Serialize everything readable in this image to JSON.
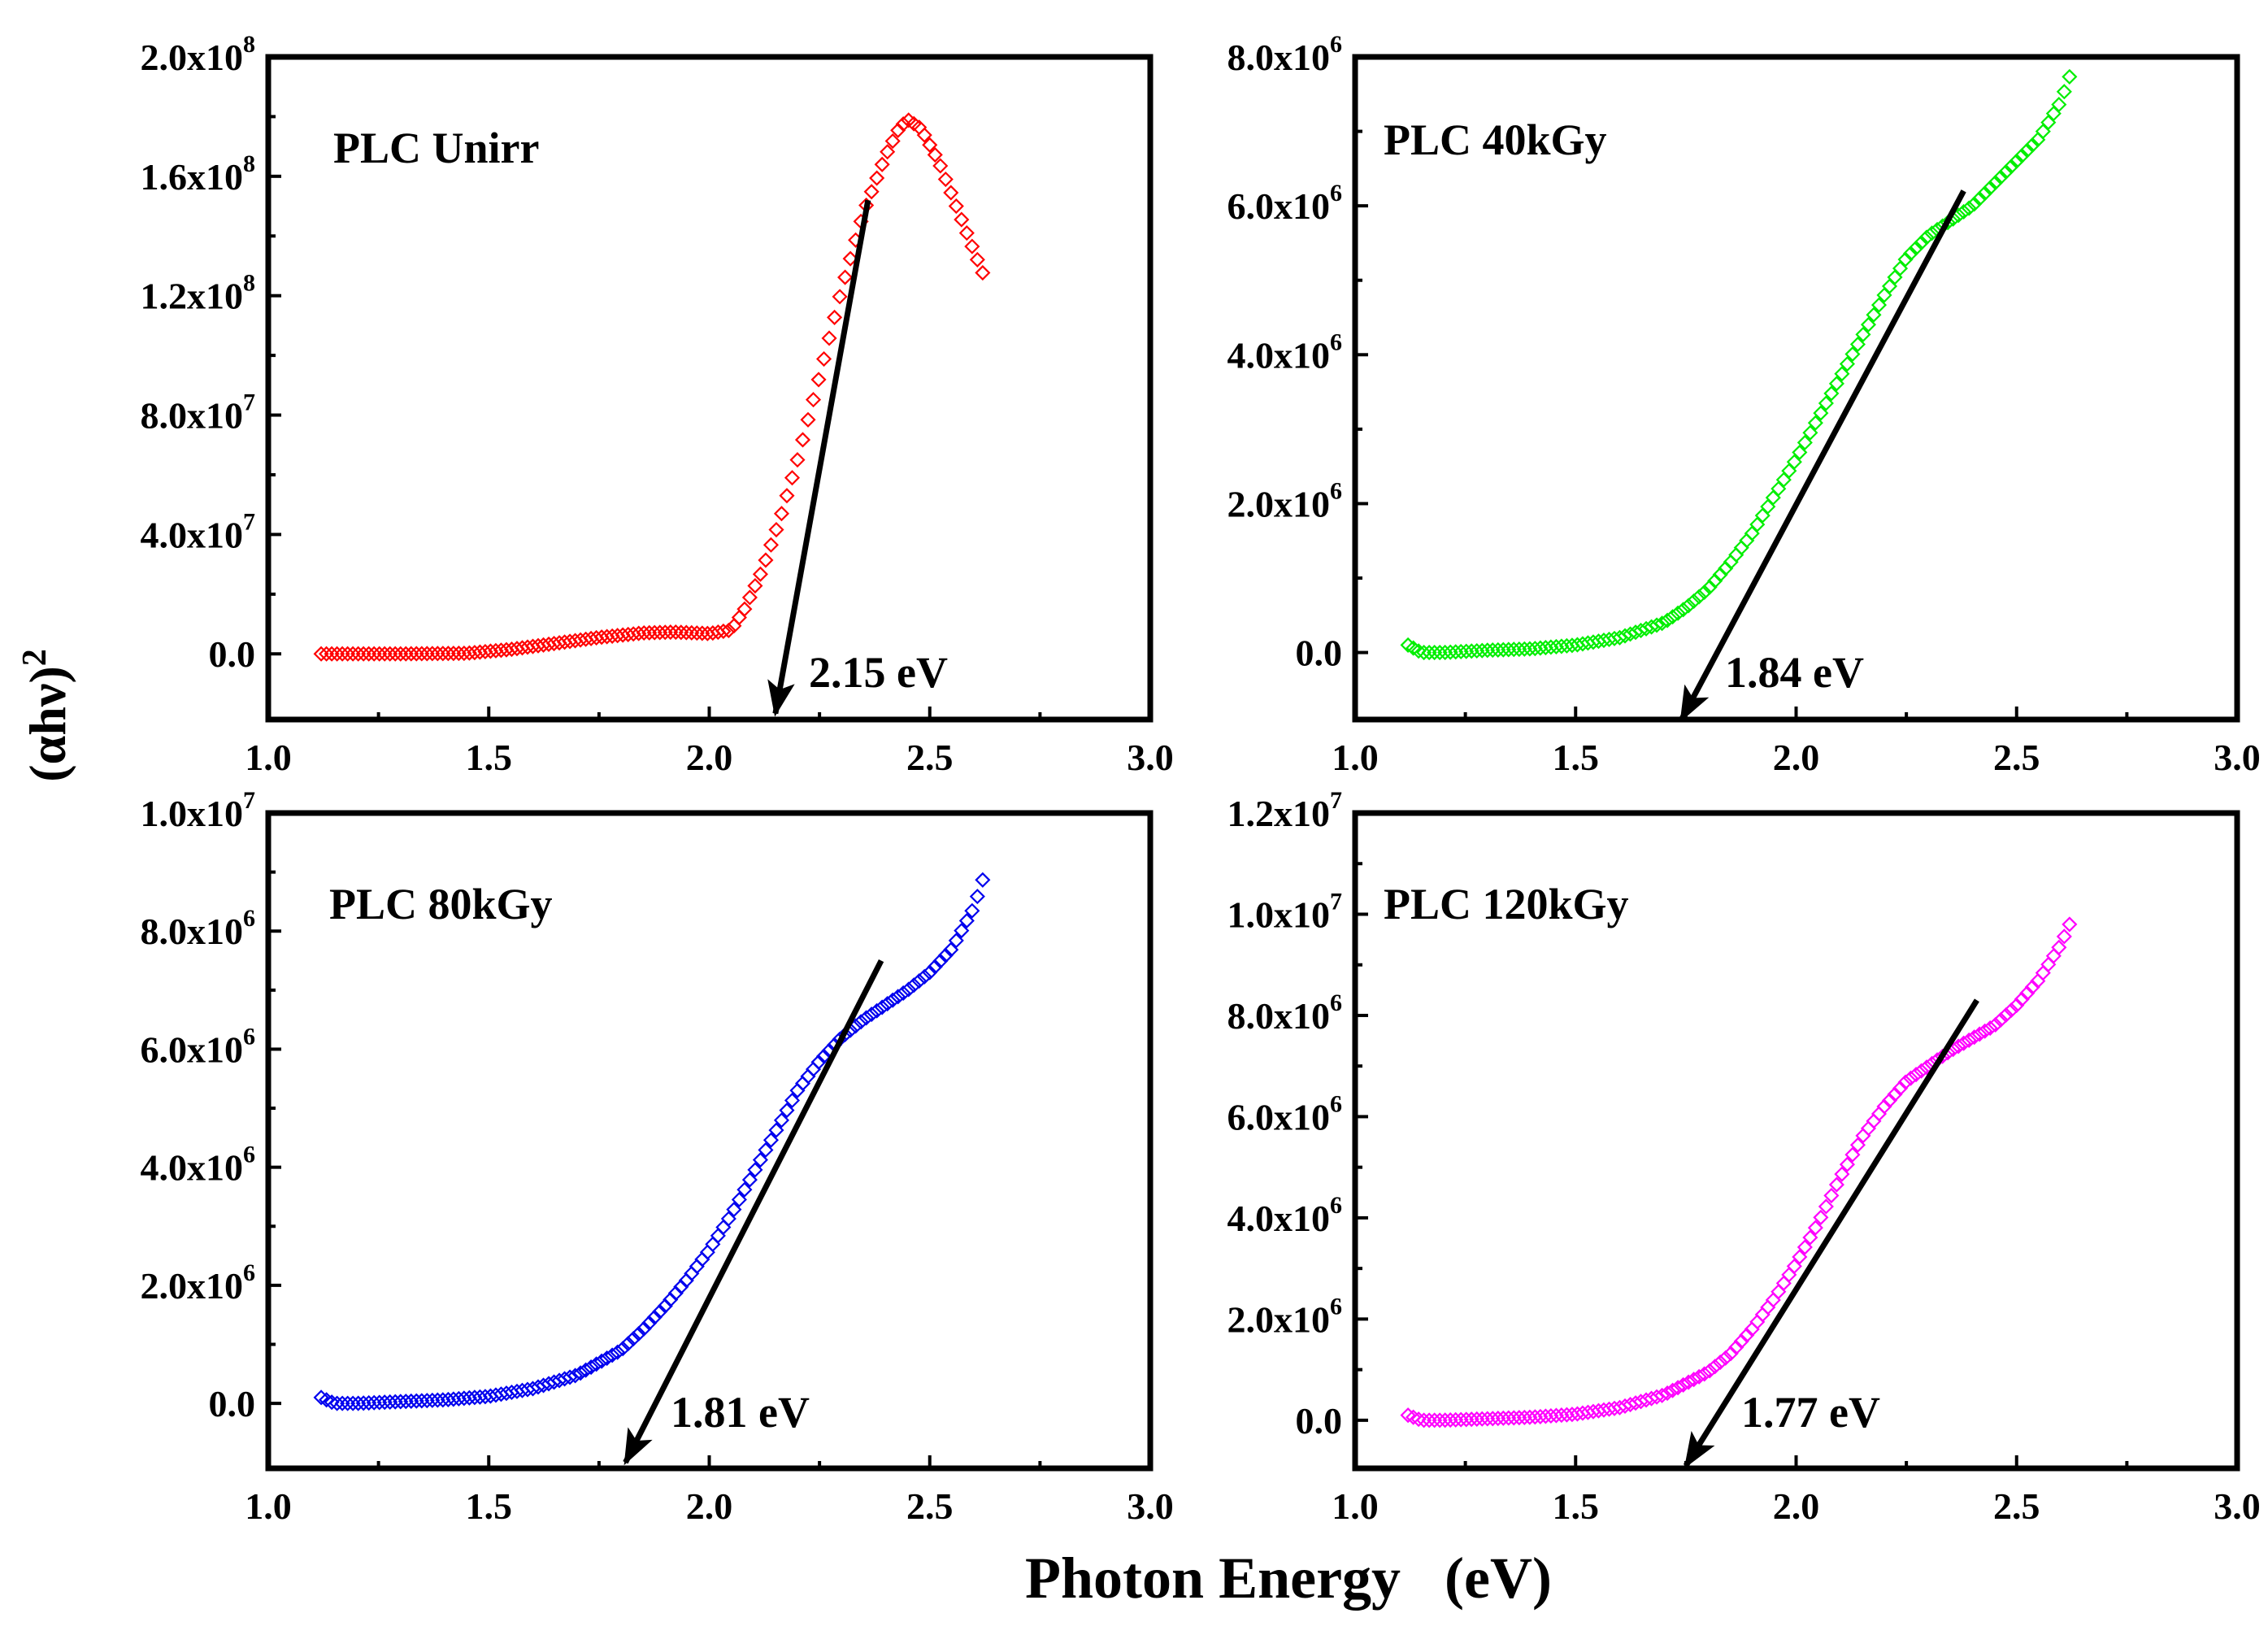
{
  "figure": {
    "xlabel": "Photon Energy   (eV)",
    "ylabel": {
      "main": "(αhν)",
      "exp": "2"
    }
  },
  "chart_data": [
    {
      "type": "scatter",
      "label": "PLC Unirr",
      "gap_text": "2.15 eV",
      "color": "#ff0000",
      "xlim": [
        1.0,
        3.0
      ],
      "ylim": [
        -22000000.0,
        200000000.0
      ],
      "xticks": [
        "1.0",
        "1.5",
        "2.0",
        "2.5",
        "3.0"
      ],
      "yticks": [
        {
          "v": 0,
          "m": "0.0",
          "e": ""
        },
        {
          "v": 40000000.0,
          "m": "4.0x10",
          "e": "7"
        },
        {
          "v": 80000000.0,
          "m": "8.0x10",
          "e": "7"
        },
        {
          "v": 120000000.0,
          "m": "1.2x10",
          "e": "8"
        },
        {
          "v": 160000000.0,
          "m": "1.6x10",
          "e": "8"
        },
        {
          "v": 200000000.0,
          "m": "2.0x10",
          "e": "8"
        }
      ],
      "series": [
        {
          "x": [
            1.12,
            1.3,
            1.45,
            1.55,
            1.65,
            1.75,
            1.85,
            1.92,
            2.0,
            2.05,
            2.08,
            2.12,
            2.16,
            2.2,
            2.25,
            2.3,
            2.35,
            2.4,
            2.43,
            2.45,
            2.48,
            2.52,
            2.56,
            2.6,
            2.63
          ],
          "y": [
            0.0,
            0.0,
            200000.0,
            1500000.0,
            3500000.0,
            5500000.0,
            7000000.0,
            7300000.0,
            6800000.0,
            8000000.0,
            15000000.0,
            28000000.0,
            45000000.0,
            65000000.0,
            93000000.0,
            122000000.0,
            148000000.0,
            167000000.0,
            176000000.0,
            179000000.0,
            176000000.0,
            165000000.0,
            150000000.0,
            135000000.0,
            124000000.0
          ]
        }
      ],
      "fit_line": {
        "x": [
          2.15,
          2.36
        ],
        "y": [
          -20000000.0,
          152000000.0
        ]
      }
    },
    {
      "type": "scatter",
      "label": "PLC 40kGy",
      "gap_text": "1.84 eV",
      "color": "#00ee00",
      "xlim": [
        1.0,
        3.0
      ],
      "ylim": [
        -900000.0,
        8000000.0
      ],
      "xticks": [
        "1.0",
        "1.5",
        "2.0",
        "2.5",
        "3.0"
      ],
      "yticks": [
        {
          "v": 0,
          "m": "0.0",
          "e": ""
        },
        {
          "v": 2000000.0,
          "m": "2.0x10",
          "e": "6"
        },
        {
          "v": 4000000.0,
          "m": "4.0x10",
          "e": "6"
        },
        {
          "v": 6000000.0,
          "m": "6.0x10",
          "e": "6"
        },
        {
          "v": 8000000.0,
          "m": "8.0x10",
          "e": "6"
        }
      ],
      "series": [
        {
          "x": [
            1.12,
            1.15,
            1.2,
            1.3,
            1.4,
            1.5,
            1.6,
            1.7,
            1.75,
            1.8,
            1.85,
            1.9,
            1.95,
            2.0,
            2.1,
            2.2,
            2.25,
            2.3,
            2.35,
            2.4,
            2.45,
            2.5,
            2.55,
            2.6,
            2.63
          ],
          "y": [
            100000.0,
            0.0,
            0.0,
            30000.0,
            50000.0,
            100000.0,
            200000.0,
            400000.0,
            600000.0,
            850000.0,
            1200000.0,
            1600000.0,
            2100000.0,
            2600000.0,
            3700000.0,
            4800000.0,
            5300000.0,
            5600000.0,
            5800000.0,
            6000000.0,
            6300000.0,
            6600000.0,
            6900000.0,
            7400000.0,
            7900000.0
          ]
        }
      ],
      "fit_line": {
        "x": [
          1.74,
          2.38
        ],
        "y": [
          -900000.0,
          6200000.0
        ]
      }
    },
    {
      "type": "scatter",
      "label": "PLC 80kGy",
      "gap_text": "1.81 eV",
      "color": "#0000ee",
      "xlim": [
        1.0,
        3.0
      ],
      "ylim": [
        -1100000.0,
        10000000.0
      ],
      "xticks": [
        "1.0",
        "1.5",
        "2.0",
        "2.5",
        "3.0"
      ],
      "yticks": [
        {
          "v": 0,
          "m": "0.0",
          "e": ""
        },
        {
          "v": 2000000.0,
          "m": "2.0x10",
          "e": "6"
        },
        {
          "v": 4000000.0,
          "m": "4.0x10",
          "e": "6"
        },
        {
          "v": 6000000.0,
          "m": "6.0x10",
          "e": "6"
        },
        {
          "v": 8000000.0,
          "m": "8.0x10",
          "e": "6"
        },
        {
          "v": 10000000.0,
          "m": "1.0x10",
          "e": "7"
        }
      ],
      "series": [
        {
          "x": [
            1.12,
            1.15,
            1.2,
            1.3,
            1.4,
            1.5,
            1.6,
            1.7,
            1.8,
            1.85,
            1.9,
            1.95,
            2.0,
            2.05,
            2.1,
            2.15,
            2.2,
            2.25,
            2.3,
            2.35,
            2.4,
            2.45,
            2.5,
            2.55,
            2.6,
            2.63
          ],
          "y": [
            100000.0,
            0.0,
            0.0,
            30000.0,
            60000.0,
            120000.0,
            250000.0,
            480000.0,
            900000.0,
            1250000.0,
            1650000.0,
            2100000.0,
            2600000.0,
            3200000.0,
            3900000.0,
            4600000.0,
            5300000.0,
            5800000.0,
            6200000.0,
            6500000.0,
            6750000.0,
            7000000.0,
            7300000.0,
            7700000.0,
            8400000.0,
            9100000.0
          ]
        }
      ],
      "fit_line": {
        "x": [
          1.81,
          2.39
        ],
        "y": [
          -1000000.0,
          7500000.0
        ]
      }
    },
    {
      "type": "scatter",
      "label": "PLC 120kGy",
      "gap_text": "1.77 eV",
      "color": "#ff00ff",
      "xlim": [
        1.0,
        3.0
      ],
      "ylim": [
        -950000.0,
        12000000.0
      ],
      "xticks": [
        "1.0",
        "1.5",
        "2.0",
        "2.5",
        "3.0"
      ],
      "yticks": [
        {
          "v": 0,
          "m": "0.0",
          "e": ""
        },
        {
          "v": 2000000.0,
          "m": "2.0x10",
          "e": "6"
        },
        {
          "v": 4000000.0,
          "m": "4.0x10",
          "e": "6"
        },
        {
          "v": 6000000.0,
          "m": "6.0x10",
          "e": "6"
        },
        {
          "v": 8000000.0,
          "m": "8.0x10",
          "e": "6"
        },
        {
          "v": 10000000.0,
          "m": "1.0x10",
          "e": "7"
        },
        {
          "v": 12000000.0,
          "m": "1.2x10",
          "e": "7"
        }
      ],
      "series": [
        {
          "x": [
            1.12,
            1.15,
            1.2,
            1.3,
            1.4,
            1.5,
            1.6,
            1.7,
            1.8,
            1.85,
            1.9,
            1.95,
            2.0,
            2.05,
            2.1,
            2.15,
            2.2,
            2.25,
            2.3,
            2.35,
            2.4,
            2.45,
            2.5,
            2.55,
            2.6,
            2.63
          ],
          "y": [
            100000.0,
            0.0,
            0.0,
            30000.0,
            60000.0,
            120000.0,
            250000.0,
            500000.0,
            950000.0,
            1300000.0,
            1800000.0,
            2400000.0,
            3100000.0,
            3900000.0,
            4800000.0,
            5600000.0,
            6200000.0,
            6700000.0,
            7000000.0,
            7300000.0,
            7550000.0,
            7800000.0,
            8200000.0,
            8700000.0,
            9400000.0,
            10000000.0
          ]
        }
      ],
      "fit_line": {
        "x": [
          1.75,
          2.41
        ],
        "y": [
          -900000.0,
          8300000.0
        ]
      }
    }
  ]
}
